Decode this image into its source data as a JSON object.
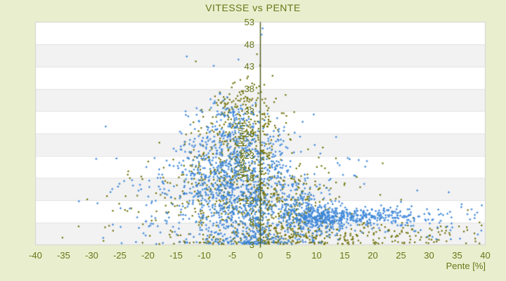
{
  "colors": {
    "page_bg": "#e9efce",
    "text": "#687618",
    "plot_bg": "#ffffff",
    "stripe": "#f2f2f3",
    "stripe_line": "#e3e3e3",
    "plot_border": "#d2d2d2",
    "axis_line": "#4c5a14",
    "series_blue": "#3e87d8",
    "series_olive": "#6f7107"
  },
  "chart_data": {
    "type": "scatter",
    "title": "VITESSE vs PENTE",
    "xlabel": "Pente [%]",
    "ylabel": "Vitesse [km/h]",
    "xlim": [
      -40,
      40
    ],
    "ylim": [
      3,
      53
    ],
    "x_ticks": [
      -40,
      -35,
      -30,
      -25,
      -20,
      -15,
      -10,
      -5,
      0,
      5,
      10,
      15,
      20,
      25,
      30,
      35,
      40
    ],
    "y_ticks": [
      53,
      48,
      43,
      38,
      33,
      28,
      23,
      18,
      13,
      8,
      3
    ],
    "grid": "horizontal-bands-alternating",
    "legend": "none",
    "zero_axis_x": 0,
    "series": [
      {
        "name": "series-olive",
        "color": "#6f7107",
        "marker": "square",
        "seed": 23,
        "clusters": [
          [
            -5,
            16,
            4.5,
            7,
            330
          ],
          [
            -4,
            30,
            3.5,
            4,
            170
          ],
          [
            -3,
            36,
            2.5,
            1.8,
            45
          ],
          [
            5,
            11,
            4,
            4.5,
            240
          ],
          [
            4,
            4.8,
            8,
            1.4,
            160
          ],
          [
            24,
            5.5,
            8,
            1.8,
            120
          ],
          [
            0.5,
            17,
            0.8,
            8,
            100
          ],
          [
            -1,
            14,
            13,
            8,
            100
          ],
          [
            -17,
            11,
            5,
            5,
            55
          ]
        ],
        "outliers": [
          [
            -0.6,
            45.8
          ],
          [
            -2.2,
            40.8
          ],
          [
            -35.2,
            4.6
          ],
          [
            38.2,
            4.4
          ],
          [
            33.1,
            3.8
          ],
          [
            -30.8,
            13.2
          ],
          [
            36.9,
            10.8
          ],
          [
            20.4,
            3.6
          ],
          [
            -23.5,
            19.5
          ]
        ]
      },
      {
        "name": "series-blue",
        "color": "#3e87d8",
        "marker": "plus",
        "seed": 11,
        "clusters": [
          [
            -5.5,
            12,
            2.5,
            5,
            260
          ],
          [
            -8,
            20,
            3,
            6,
            200
          ],
          [
            -3,
            25,
            2,
            5,
            130
          ],
          [
            -1,
            10,
            1.2,
            5,
            170
          ],
          [
            -11,
            15,
            3,
            6,
            150
          ],
          [
            -6,
            31,
            3,
            3,
            80
          ],
          [
            2.5,
            22,
            1.5,
            4,
            90
          ],
          [
            6,
            13,
            3,
            3,
            150
          ],
          [
            9,
            9.5,
            4,
            1.8,
            190
          ],
          [
            19,
            9.3,
            5,
            1.1,
            240
          ],
          [
            12,
            8.7,
            3,
            1.5,
            150
          ],
          [
            0,
            4.3,
            6,
            1.0,
            90
          ],
          [
            0,
            16,
            12,
            8,
            100
          ],
          [
            31,
            8.5,
            5,
            2.2,
            50
          ],
          [
            -19,
            12,
            4.5,
            5.5,
            60
          ]
        ],
        "outliers": [
          [
            -13.1,
            45.3
          ],
          [
            0.4,
            51.6
          ],
          [
            0.2,
            50.2
          ],
          [
            -8.3,
            43.2
          ],
          [
            -3.9,
            44.6
          ],
          [
            -25.6,
            22.4
          ],
          [
            -29.2,
            22.3
          ],
          [
            35.8,
            12.1
          ],
          [
            39.3,
            6.2
          ],
          [
            33.5,
            14.8
          ],
          [
            27.9,
            15.2
          ]
        ]
      }
    ]
  }
}
